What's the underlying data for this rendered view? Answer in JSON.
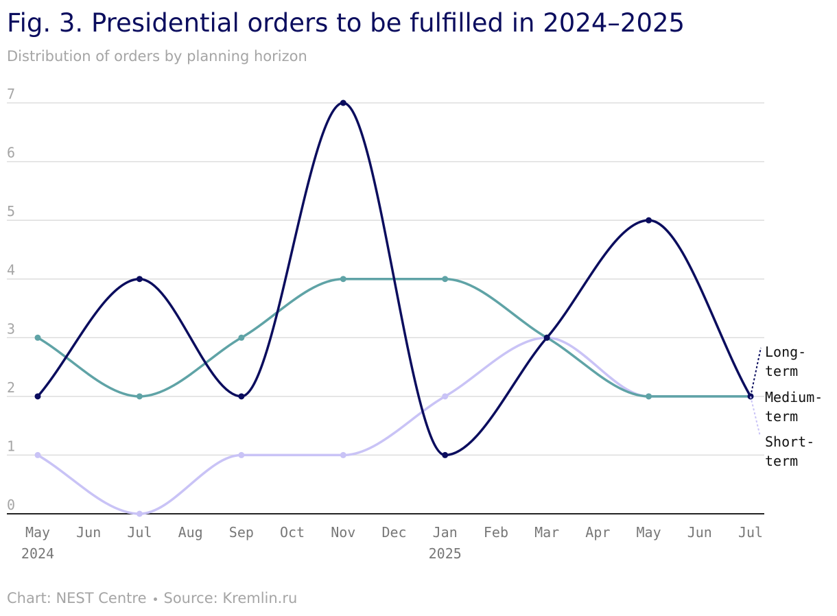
{
  "title": "Fig. 3. Presidential orders to be fulfilled in 2024–2025",
  "subtitle": "Distribution of orders by planning horizon",
  "footer": {
    "chart_credit": "Chart: NEST Centre",
    "source": "Source: Kremlin.ru"
  },
  "colors": {
    "long_term": "#0b0d5e",
    "medium_term": "#5fa3a6",
    "short_term": "#c9c3f6",
    "grid": "#dddddd",
    "axis": "#222222",
    "muted_text": "#a5a5a5",
    "tick_text": "#777777"
  },
  "chart_data": {
    "type": "line",
    "categories": [
      "May",
      "Jun",
      "Jul",
      "Aug",
      "Sep",
      "Oct",
      "Nov",
      "Dec",
      "Jan",
      "Feb",
      "Mar",
      "Apr",
      "May",
      "Jun",
      "Jul"
    ],
    "year_labels": [
      {
        "category_index": 0,
        "label": "2024"
      },
      {
        "category_index": 8,
        "label": "2025"
      }
    ],
    "ylim": [
      0,
      7
    ],
    "yticks": [
      0,
      1,
      2,
      3,
      4,
      5,
      6,
      7
    ],
    "grid": true,
    "series": [
      {
        "name": "Long-term",
        "label_lines": [
          "Long-",
          "term"
        ],
        "color": "#0b0d5e",
        "points": [
          [
            0,
            2
          ],
          [
            2,
            4
          ],
          [
            4,
            2
          ],
          [
            6,
            7
          ],
          [
            8,
            1
          ],
          [
            10,
            3
          ],
          [
            12,
            5
          ],
          [
            14,
            2
          ]
        ]
      },
      {
        "name": "Medium-term",
        "label_lines": [
          "Medium-",
          "term"
        ],
        "color": "#5fa3a6",
        "points": [
          [
            0,
            3
          ],
          [
            2,
            2
          ],
          [
            4,
            3
          ],
          [
            6,
            4
          ],
          [
            8,
            4
          ],
          [
            10,
            3
          ],
          [
            12,
            2
          ],
          [
            14,
            2
          ]
        ]
      },
      {
        "name": "Short-term",
        "label_lines": [
          "Short-",
          "term"
        ],
        "color": "#c9c3f6",
        "points": [
          [
            0,
            1
          ],
          [
            2,
            0
          ],
          [
            4,
            1
          ],
          [
            6,
            1
          ],
          [
            8,
            2
          ],
          [
            10,
            3
          ],
          [
            12,
            2
          ],
          [
            14,
            2
          ]
        ]
      }
    ]
  }
}
